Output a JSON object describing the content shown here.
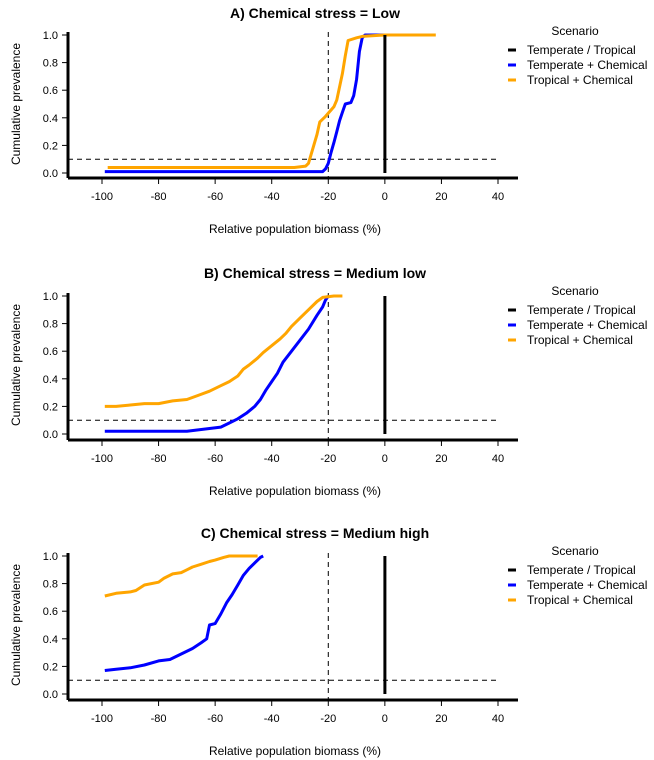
{
  "chart_data": [
    {
      "type": "line",
      "title": "A) Chemical stress = Low",
      "xlabel": "Relative population biomass (%)",
      "ylabel": "Cumulative prevalence",
      "xlim": [
        -105,
        45
      ],
      "ylim": [
        0,
        1
      ],
      "xticks": [
        -100,
        -80,
        -60,
        -40,
        -20,
        0,
        20,
        40
      ],
      "yticks": [
        0,
        0.2,
        0.4,
        0.6,
        0.8,
        1
      ],
      "xtick_labels": [
        "-100",
        "-80",
        "-60",
        "-40",
        "-20",
        "0",
        "20",
        "40"
      ],
      "ytick_labels": [
        "0.0",
        "0.2",
        "0.4",
        "0.6",
        "0.8",
        "1.0"
      ],
      "ref_x": -20,
      "ref_y": 0.1,
      "legend_title": "Scenario",
      "legend_position": "right",
      "series": [
        {
          "name": "Temperate / Tropical",
          "color": "#000000",
          "points": [
            [
              0,
              0
            ],
            [
              0,
              1
            ]
          ]
        },
        {
          "name": "Temperate + Chemical",
          "color": "#0000ff",
          "points": [
            [
              -99,
              0.01
            ],
            [
              -60,
              0.01
            ],
            [
              -30,
              0.01
            ],
            [
              -22,
              0.01
            ],
            [
              -21,
              0.03
            ],
            [
              -20,
              0.07
            ],
            [
              -19,
              0.15
            ],
            [
              -18,
              0.22
            ],
            [
              -17,
              0.3
            ],
            [
              -16,
              0.38
            ],
            [
              -15,
              0.44
            ],
            [
              -14,
              0.5
            ],
            [
              -12,
              0.51
            ],
            [
              -11,
              0.56
            ],
            [
              -10,
              0.68
            ],
            [
              -9,
              0.88
            ],
            [
              -8,
              0.98
            ],
            [
              -7,
              1.0
            ],
            [
              0,
              1.0
            ]
          ]
        },
        {
          "name": "Tropical + Chemical",
          "color": "#ffa500",
          "points": [
            [
              -98,
              0.04
            ],
            [
              -60,
              0.04
            ],
            [
              -32,
              0.04
            ],
            [
              -28,
              0.05
            ],
            [
              -27,
              0.07
            ],
            [
              -24,
              0.28
            ],
            [
              -23,
              0.37
            ],
            [
              -21,
              0.41
            ],
            [
              -18,
              0.48
            ],
            [
              -17,
              0.53
            ],
            [
              -15,
              0.72
            ],
            [
              -14,
              0.85
            ],
            [
              -13,
              0.96
            ],
            [
              -10,
              0.98
            ],
            [
              -8,
              0.99
            ],
            [
              0,
              1.0
            ],
            [
              18,
              1.0
            ]
          ]
        }
      ]
    },
    {
      "type": "line",
      "title": "B) Chemical stress = Medium low",
      "xlabel": "Relative population biomass (%)",
      "ylabel": "Cumulative prevalence",
      "xlim": [
        -105,
        45
      ],
      "ylim": [
        0,
        1
      ],
      "xticks": [
        -100,
        -80,
        -60,
        -40,
        -20,
        0,
        20,
        40
      ],
      "yticks": [
        0,
        0.2,
        0.4,
        0.6,
        0.8,
        1
      ],
      "xtick_labels": [
        "-100",
        "-80",
        "-60",
        "-40",
        "-20",
        "0",
        "20",
        "40"
      ],
      "ytick_labels": [
        "0.0",
        "0.2",
        "0.4",
        "0.6",
        "0.8",
        "1.0"
      ],
      "ref_x": -20,
      "ref_y": 0.1,
      "legend_title": "Scenario",
      "legend_position": "right",
      "series": [
        {
          "name": "Temperate / Tropical",
          "color": "#000000",
          "points": [
            [
              0,
              0
            ],
            [
              0,
              1
            ]
          ]
        },
        {
          "name": "Temperate + Chemical",
          "color": "#0000ff",
          "points": [
            [
              -99,
              0.02
            ],
            [
              -80,
              0.02
            ],
            [
              -70,
              0.02
            ],
            [
              -66,
              0.03
            ],
            [
              -62,
              0.04
            ],
            [
              -58,
              0.05
            ],
            [
              -55,
              0.08
            ],
            [
              -52,
              0.11
            ],
            [
              -49,
              0.15
            ],
            [
              -46,
              0.2
            ],
            [
              -44,
              0.25
            ],
            [
              -42,
              0.32
            ],
            [
              -40,
              0.38
            ],
            [
              -38,
              0.44
            ],
            [
              -36,
              0.52
            ],
            [
              -33,
              0.6
            ],
            [
              -30,
              0.68
            ],
            [
              -27,
              0.76
            ],
            [
              -24,
              0.86
            ],
            [
              -22,
              0.92
            ],
            [
              -21,
              0.97
            ],
            [
              -20,
              1.0
            ]
          ]
        },
        {
          "name": "Tropical + Chemical",
          "color": "#ffa500",
          "points": [
            [
              -99,
              0.2
            ],
            [
              -95,
              0.2
            ],
            [
              -90,
              0.21
            ],
            [
              -85,
              0.22
            ],
            [
              -80,
              0.22
            ],
            [
              -75,
              0.24
            ],
            [
              -70,
              0.25
            ],
            [
              -66,
              0.28
            ],
            [
              -62,
              0.31
            ],
            [
              -58,
              0.35
            ],
            [
              -55,
              0.38
            ],
            [
              -52,
              0.42
            ],
            [
              -50,
              0.47
            ],
            [
              -48,
              0.5
            ],
            [
              -45,
              0.55
            ],
            [
              -43,
              0.59
            ],
            [
              -40,
              0.64
            ],
            [
              -37,
              0.69
            ],
            [
              -35,
              0.73
            ],
            [
              -33,
              0.78
            ],
            [
              -30,
              0.84
            ],
            [
              -27,
              0.9
            ],
            [
              -24,
              0.96
            ],
            [
              -22,
              0.99
            ],
            [
              -18,
              1.0
            ],
            [
              -15,
              1.0
            ]
          ]
        }
      ]
    },
    {
      "type": "line",
      "title": "C) Chemical stress = Medium high",
      "xlabel": "Relative population biomass (%)",
      "ylabel": "Cumulative prevalence",
      "xlim": [
        -105,
        45
      ],
      "ylim": [
        0,
        1
      ],
      "xticks": [
        -100,
        -80,
        -60,
        -40,
        -20,
        0,
        20,
        40
      ],
      "yticks": [
        0,
        0.2,
        0.4,
        0.6,
        0.8,
        1
      ],
      "xtick_labels": [
        "-100",
        "-80",
        "-60",
        "-40",
        "-20",
        "0",
        "20",
        "40"
      ],
      "ytick_labels": [
        "0.0",
        "0.2",
        "0.4",
        "0.6",
        "0.8",
        "1.0"
      ],
      "ref_x": -20,
      "ref_y": 0.1,
      "legend_title": "Scenario",
      "legend_position": "right",
      "series": [
        {
          "name": "Temperate / Tropical",
          "color": "#000000",
          "points": [
            [
              0,
              0
            ],
            [
              0,
              1
            ]
          ]
        },
        {
          "name": "Temperate + Chemical",
          "color": "#0000ff",
          "points": [
            [
              -99,
              0.17
            ],
            [
              -95,
              0.18
            ],
            [
              -90,
              0.19
            ],
            [
              -85,
              0.21
            ],
            [
              -80,
              0.24
            ],
            [
              -76,
              0.25
            ],
            [
              -72,
              0.29
            ],
            [
              -68,
              0.33
            ],
            [
              -65,
              0.37
            ],
            [
              -63,
              0.4
            ],
            [
              -62,
              0.5
            ],
            [
              -60,
              0.51
            ],
            [
              -58,
              0.58
            ],
            [
              -56,
              0.66
            ],
            [
              -54,
              0.72
            ],
            [
              -52,
              0.79
            ],
            [
              -50,
              0.86
            ],
            [
              -48,
              0.91
            ],
            [
              -46,
              0.95
            ],
            [
              -44,
              0.99
            ],
            [
              -43,
              1.0
            ]
          ]
        },
        {
          "name": "Tropical + Chemical",
          "color": "#ffa500",
          "points": [
            [
              -99,
              0.71
            ],
            [
              -95,
              0.73
            ],
            [
              -90,
              0.74
            ],
            [
              -88,
              0.75
            ],
            [
              -85,
              0.79
            ],
            [
              -80,
              0.81
            ],
            [
              -78,
              0.84
            ],
            [
              -75,
              0.87
            ],
            [
              -72,
              0.88
            ],
            [
              -70,
              0.9
            ],
            [
              -68,
              0.92
            ],
            [
              -65,
              0.94
            ],
            [
              -62,
              0.96
            ],
            [
              -60,
              0.97
            ],
            [
              -57,
              0.99
            ],
            [
              -55,
              1.0
            ],
            [
              -50,
              1.0
            ],
            [
              -45,
              1.0
            ]
          ]
        }
      ]
    }
  ]
}
